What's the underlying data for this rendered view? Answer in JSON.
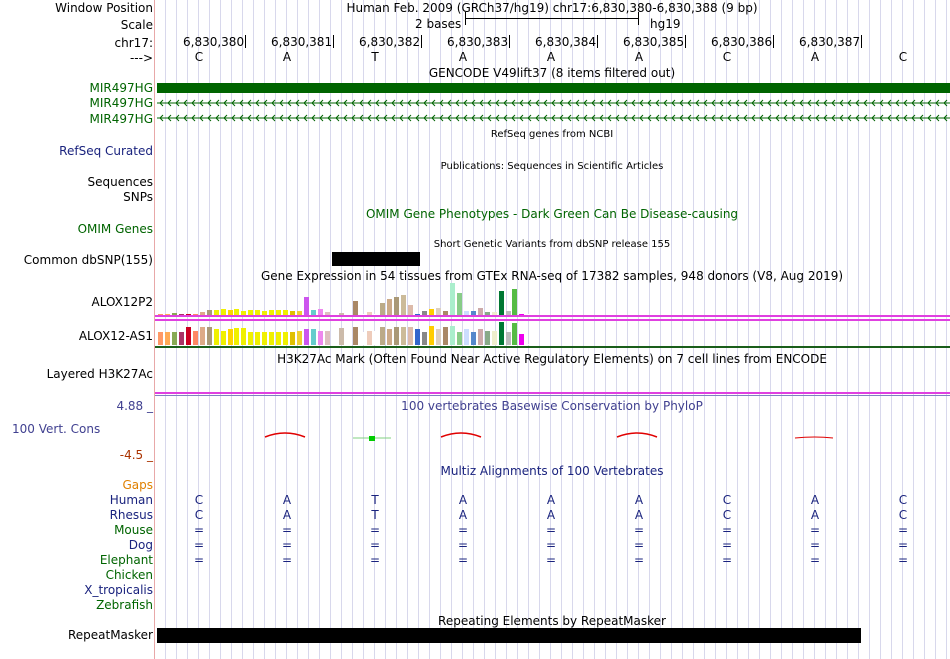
{
  "header": {
    "window_position_label": "Window Position",
    "scale_label": "Scale",
    "chrom_label": "chr17:",
    "strand_label": "--->",
    "assembly_text": "Human Feb. 2009 (GRCh37/hg19)   chr17:6,830,380-6,830,388 (9 bp)",
    "scale_text": "2 bases",
    "db_text": "hg19",
    "positions": [
      "6,830,380",
      "6,830,381",
      "6,830,382",
      "6,830,383",
      "6,830,384",
      "6,830,385",
      "6,830,386",
      "6,830,387"
    ],
    "bases": [
      "C",
      "A",
      "T",
      "A",
      "A",
      "A",
      "C",
      "A",
      "C"
    ]
  },
  "tracks": {
    "gencode": {
      "title": "GENCODE V49lift37 (8 items filtered out)",
      "items": [
        "MIR497HG",
        "MIR497HG",
        "MIR497HG"
      ],
      "color": "#006400"
    },
    "refseq": {
      "title": "RefSeq genes from NCBI",
      "label": "RefSeq Curated",
      "color": "#1a237e"
    },
    "publications": {
      "title": "Publications: Sequences in Scientific Articles",
      "labels": [
        "Sequences",
        "SNPs"
      ]
    },
    "omim": {
      "title": "OMIM Gene Phenotypes - Dark Green Can Be Disease-causing",
      "label": "OMIM Genes",
      "color": "#006400"
    },
    "dbsnp": {
      "title": "Short Genetic Variants from dbSNP release 155",
      "label": "Common dbSNP(155)"
    },
    "gtex": {
      "title": "Gene Expression in 54 tissues from GTEx RNA-seq of 17382 samples, 948 donors (V8, Aug 2019)",
      "genes": [
        "ALOX12P2",
        "ALOX12-AS1"
      ],
      "tissue_colors": [
        "#ff9966",
        "#ffaa55",
        "#88aa55",
        "#aa3366",
        "#cc0022",
        "#ff8866",
        "#ddaa88",
        "#aa9977",
        "#f0f000",
        "#f0f000",
        "#ffd400",
        "#f0f000",
        "#f0f000",
        "#f0f000",
        "#f0f000",
        "#f0f000",
        "#f0f000",
        "#f0f000",
        "#f0f000",
        "#e0c000",
        "#f0d030",
        "#cc55ee",
        "#66cccc",
        "#ee88ee",
        "#ddc0c0",
        "#ffffff",
        "#ccbbaa",
        "#ffffff",
        "#aa8866",
        "#ffffff",
        "#eeccbb",
        "#ffffff",
        "#bbaa88",
        "#ccaa88",
        "#aa9977",
        "#ccbb99",
        "#ddbbaa",
        "#3366cc",
        "#888888",
        "#ffcc00",
        "#ddd0c0",
        "#aa8866",
        "#aaeecc",
        "#88cc88",
        "#ccddff",
        "#5588cc",
        "#ccaaaa",
        "#88aa88",
        "#eeeecc",
        "#007733",
        "#bbbbbb",
        "#55bb44",
        "#ee00ee",
        "#ffffff"
      ],
      "values_top": [
        0.05,
        0.05,
        0.1,
        0.05,
        0.05,
        0.05,
        0.15,
        0.25,
        0.25,
        0.3,
        0.25,
        0.3,
        0.2,
        0.25,
        0.25,
        0.2,
        0.25,
        0.25,
        0.25,
        0.2,
        0.2,
        0.9,
        0.25,
        0.3,
        0.15,
        0.05,
        0.1,
        0.05,
        0.7,
        0.05,
        0.15,
        0.05,
        0.6,
        0.8,
        0.9,
        1.0,
        0.5,
        0.05,
        0.2,
        0.3,
        0.35,
        0.2,
        1.6,
        1.1,
        0.2,
        0.2,
        0.35,
        0.15,
        0.15,
        1.2,
        0.2,
        1.3,
        0.05,
        0.05
      ],
      "values_bottom": [
        0.55,
        0.55,
        0.55,
        0.55,
        0.75,
        0.6,
        0.75,
        0.75,
        0.65,
        0.6,
        0.65,
        0.7,
        0.7,
        0.55,
        0.55,
        0.55,
        0.55,
        0.55,
        0.55,
        0.55,
        0.6,
        0.65,
        0.65,
        0.6,
        0.6,
        0.6,
        0.7,
        0.55,
        0.75,
        0.55,
        0.6,
        0.6,
        0.75,
        0.65,
        0.75,
        0.75,
        0.75,
        0.65,
        0.55,
        0.8,
        0.65,
        0.75,
        0.8,
        0.55,
        0.65,
        0.55,
        0.65,
        0.6,
        0.6,
        0.95,
        0.55,
        0.9,
        0.45,
        0.05
      ]
    },
    "h3k27ac": {
      "title": "H3K27Ac Mark (Often Found Near Active Regulatory Elements) on 7 cell lines from ENCODE",
      "label": "Layered H3K27Ac"
    },
    "phylop": {
      "title": "100 vertebrates Basewise Conservation by PhyloP",
      "label": "100 Vert. Cons",
      "max_label": "4.88 _",
      "min_label": "-4.5 _",
      "color": "#404090"
    },
    "multiz": {
      "title": "Multiz Alignments of 100 Vertebrates",
      "gaps_label": "Gaps",
      "species": [
        {
          "name": "Human",
          "color": "#1a237e",
          "bases": [
            "C",
            "A",
            "T",
            "A",
            "A",
            "A",
            "C",
            "A",
            "C"
          ]
        },
        {
          "name": "Rhesus",
          "color": "#1a237e",
          "bases": [
            "C",
            "A",
            "T",
            "A",
            "A",
            "A",
            "C",
            "A",
            "C"
          ]
        },
        {
          "name": "Mouse",
          "color": "#006400",
          "bases": [
            "=",
            "=",
            "=",
            "=",
            "=",
            "=",
            "=",
            "=",
            "="
          ]
        },
        {
          "name": "Dog",
          "color": "#1a237e",
          "bases": [
            "=",
            "=",
            "=",
            "=",
            "=",
            "=",
            "=",
            "=",
            "="
          ]
        },
        {
          "name": "Elephant",
          "color": "#006400",
          "bases": [
            "=",
            "=",
            "=",
            "=",
            "=",
            "=",
            "=",
            "=",
            "="
          ]
        },
        {
          "name": "Chicken",
          "color": "#006400",
          "bases": []
        },
        {
          "name": "X_tropicalis",
          "color": "#1a237e",
          "bases": []
        },
        {
          "name": "Zebrafish",
          "color": "#006400",
          "bases": []
        }
      ]
    },
    "repeatmasker": {
      "title": "Repeating Elements by RepeatMasker",
      "label": "RepeatMasker"
    }
  }
}
